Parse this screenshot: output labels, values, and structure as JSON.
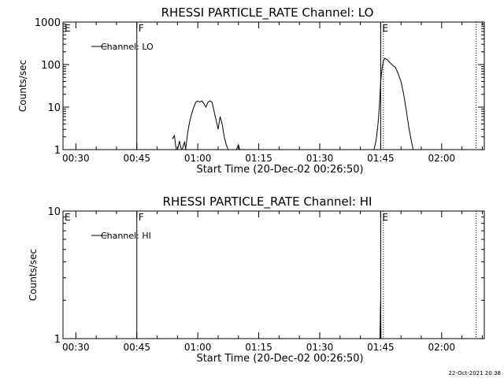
{
  "footer": {
    "timestamp": "22-Oct-2021 20:38"
  },
  "chart_data": [
    {
      "type": "line",
      "title": "RHESSI PARTICLE_RATE Channel: LO",
      "xlabel": "Start Time (20-Dec-02 00:26:50)",
      "ylabel": "Counts/sec",
      "yscale": "log",
      "ylim": [
        1,
        1000
      ],
      "xlim": [
        "00:26:50",
        "02:10:30"
      ],
      "xticks": [
        "00:30",
        "00:45",
        "01:00",
        "01:15",
        "01:30",
        "01:45",
        "02:00"
      ],
      "yticks": [
        "1",
        "10",
        "100",
        "1000"
      ],
      "legend": {
        "entry": "Channel: LO",
        "placement": "top-left"
      },
      "markers": [
        {
          "label": "E",
          "time": "00:26:50",
          "style": "solid"
        },
        {
          "label": "F",
          "time": "00:45:00",
          "style": "solid"
        },
        {
          "label": "E",
          "time": "01:45:00",
          "style": "solid"
        },
        {
          "label": "",
          "time": "01:45:40",
          "style": "dotted"
        },
        {
          "label": "",
          "time": "02:08:30",
          "style": "dotted"
        }
      ],
      "series": [
        {
          "name": "Channel: LO",
          "segments": [
            [
              [
                "00:53:40",
                1.8
              ],
              [
                "00:54:00",
                1.9
              ],
              [
                "00:54:15",
                2.2
              ],
              [
                "00:54:30",
                1.3
              ],
              [
                "00:54:45",
                0.8
              ]
            ],
            [
              [
                "00:55:00",
                0.9
              ],
              [
                "00:55:30",
                1.6
              ],
              [
                "00:55:45",
                1.2
              ],
              [
                "00:56:00",
                0.9
              ]
            ],
            [
              [
                "00:56:10",
                0.9
              ],
              [
                "00:56:30",
                1.3
              ],
              [
                "00:56:45",
                1.5
              ],
              [
                "00:57:00",
                0.9
              ]
            ],
            [
              [
                "00:57:00",
                0.9
              ],
              [
                "00:57:30",
                2.5
              ],
              [
                "00:58:00",
                4.5
              ],
              [
                "00:58:30",
                7
              ],
              [
                "00:59:00",
                10
              ],
              [
                "00:59:30",
                13
              ],
              [
                "01:00:00",
                14
              ],
              [
                "01:00:30",
                13
              ],
              [
                "01:01:00",
                14
              ],
              [
                "01:01:30",
                12
              ],
              [
                "01:02:00",
                10
              ],
              [
                "01:02:30",
                13
              ],
              [
                "01:03:00",
                14
              ],
              [
                "01:03:30",
                13
              ],
              [
                "01:04:00",
                8
              ],
              [
                "01:04:30",
                5
              ],
              [
                "01:05:00",
                3
              ],
              [
                "01:05:30",
                6
              ],
              [
                "01:06:00",
                4
              ],
              [
                "01:06:30",
                2
              ],
              [
                "01:07:00",
                1.3
              ],
              [
                "01:07:30",
                0.9
              ]
            ],
            [
              [
                "01:09:30",
                0.9
              ],
              [
                "01:10:00",
                1.3
              ],
              [
                "01:10:20",
                0.9
              ]
            ],
            [
              [
                "01:43:20",
                0.9
              ],
              [
                "01:43:40",
                1.3
              ],
              [
                "01:44:00",
                2
              ],
              [
                "01:44:20",
                4
              ],
              [
                "01:44:40",
                10
              ],
              [
                "01:45:00",
                40
              ],
              [
                "01:45:20",
                80
              ],
              [
                "01:45:40",
                120
              ],
              [
                "01:46:00",
                140
              ],
              [
                "01:46:40",
                130
              ],
              [
                "01:47:20",
                110
              ],
              [
                "01:48:00",
                95
              ],
              [
                "01:48:40",
                85
              ],
              [
                "01:49:20",
                60
              ],
              [
                "01:50:00",
                40
              ],
              [
                "01:50:40",
                20
              ],
              [
                "01:51:20",
                8
              ],
              [
                "01:52:00",
                3
              ],
              [
                "01:52:40",
                1.4
              ],
              [
                "01:53:00",
                0.9
              ]
            ]
          ]
        }
      ]
    },
    {
      "type": "line",
      "title": "RHESSI PARTICLE_RATE Channel: HI",
      "xlabel": "Start Time (20-Dec-02 00:26:50)",
      "ylabel": "Counts/sec",
      "yscale": "log",
      "ylim": [
        1,
        10
      ],
      "xlim": [
        "00:26:50",
        "02:10:30"
      ],
      "xticks": [
        "00:30",
        "00:45",
        "01:00",
        "01:15",
        "01:30",
        "01:45",
        "02:00"
      ],
      "yticks": [
        "1",
        "10"
      ],
      "legend": {
        "entry": "Channel: HI",
        "placement": "top-left"
      },
      "markers": [
        {
          "label": "E",
          "time": "00:26:50",
          "style": "solid"
        },
        {
          "label": "F",
          "time": "00:45:00",
          "style": "solid"
        },
        {
          "label": "E",
          "time": "01:45:00",
          "style": "solid"
        },
        {
          "label": "",
          "time": "01:45:40",
          "style": "dotted"
        },
        {
          "label": "",
          "time": "02:08:30",
          "style": "dotted"
        }
      ],
      "series": [
        {
          "name": "Channel: HI",
          "segments": [
            [
              [
                "01:44:50",
                1.0
              ],
              [
                "01:44:55",
                1.6
              ],
              [
                "01:45:00",
                2.0
              ],
              [
                "01:45:05",
                1.0
              ]
            ]
          ]
        }
      ]
    }
  ]
}
